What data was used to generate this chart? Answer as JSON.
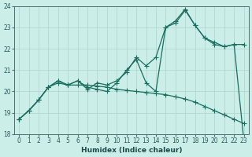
{
  "xlabel": "Humidex (Indice chaleur)",
  "bg_color": "#cceee8",
  "grid_color": "#aad4cc",
  "line_color": "#1a6e60",
  "xlim": [
    -0.5,
    23.5
  ],
  "ylim": [
    18,
    24
  ],
  "xticks": [
    0,
    1,
    2,
    3,
    4,
    5,
    6,
    7,
    8,
    9,
    10,
    11,
    12,
    13,
    14,
    15,
    16,
    17,
    18,
    19,
    20,
    21,
    22,
    23
  ],
  "yticks": [
    18,
    19,
    20,
    21,
    22,
    23,
    24
  ],
  "line1_x": [
    0,
    1,
    2,
    3,
    4,
    5,
    6,
    7,
    8,
    9,
    10,
    11,
    12,
    13,
    14,
    15,
    16,
    17,
    18,
    19,
    20,
    21,
    22,
    23
  ],
  "line1_y": [
    18.7,
    19.1,
    19.6,
    20.2,
    20.4,
    20.3,
    20.3,
    20.3,
    20.25,
    20.2,
    20.1,
    20.05,
    20.0,
    19.95,
    19.9,
    19.85,
    19.75,
    19.65,
    19.5,
    19.3,
    19.1,
    18.9,
    18.7,
    18.5
  ],
  "line2_x": [
    0,
    1,
    2,
    3,
    4,
    5,
    6,
    7,
    8,
    9,
    10,
    11,
    12,
    13,
    14,
    15,
    16,
    17,
    18,
    19,
    20,
    21,
    22,
    23
  ],
  "line2_y": [
    18.7,
    19.1,
    19.6,
    20.2,
    20.5,
    20.3,
    20.5,
    20.2,
    20.1,
    20.0,
    20.4,
    21.0,
    21.5,
    20.4,
    20.0,
    23.0,
    23.2,
    23.8,
    23.1,
    22.5,
    22.2,
    22.1,
    22.2,
    17.7
  ],
  "line3_x": [
    0,
    1,
    2,
    3,
    4,
    5,
    6,
    7,
    8,
    9,
    10,
    11,
    12,
    13,
    14,
    15,
    16,
    17,
    18,
    19,
    20,
    21,
    22,
    23
  ],
  "line3_y": [
    18.7,
    19.1,
    19.6,
    20.2,
    20.5,
    20.3,
    20.5,
    20.1,
    20.4,
    20.3,
    20.5,
    20.9,
    21.6,
    21.2,
    21.6,
    23.0,
    23.3,
    23.85,
    23.1,
    22.5,
    22.3,
    22.1,
    22.2,
    22.2
  ],
  "marker": "+",
  "markersize": 4,
  "linewidth": 0.9,
  "tick_fontsize": 5.5,
  "label_fontsize": 6.5
}
